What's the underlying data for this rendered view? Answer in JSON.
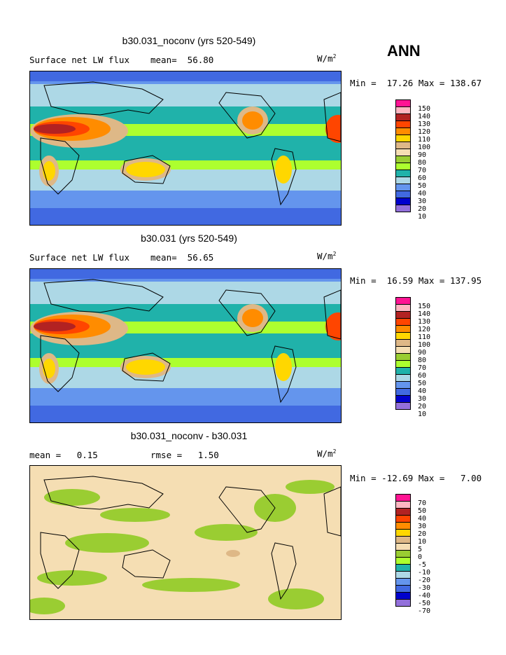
{
  "season": "ANN",
  "units_label": "W/m",
  "units_exp": "2",
  "panels": [
    {
      "title": "b30.031_noconv (yrs 520-549)",
      "left_label": "Surface net LW flux",
      "mid_label": "mean=  56.80",
      "minmax": "Min =  17.26 Max = 138.67",
      "levels": [
        "150",
        "140",
        "130",
        "120",
        "110",
        "100",
        "90",
        "80",
        "70",
        "60",
        "50",
        "40",
        "30",
        "20",
        "10"
      ]
    },
    {
      "title": "b30.031 (yrs 520-549)",
      "left_label": "Surface net LW flux",
      "mid_label": "mean=  56.65",
      "minmax": "Min =  16.59 Max = 137.95",
      "levels": [
        "150",
        "140",
        "130",
        "120",
        "110",
        "100",
        "90",
        "80",
        "70",
        "60",
        "50",
        "40",
        "30",
        "20",
        "10"
      ]
    },
    {
      "title": "b30.031_noconv - b30.031",
      "left_label": "mean =   0.15",
      "mid_label": "rmse =   1.50",
      "minmax": "Min = -12.69 Max =   7.00",
      "levels": [
        "70",
        "50",
        "40",
        "30",
        "20",
        "10",
        "5",
        "0",
        "-5",
        "-10",
        "-20",
        "-30",
        "-40",
        "-50",
        "-70"
      ]
    }
  ],
  "colors": [
    "#ff1493",
    "#ffb6c1",
    "#b22222",
    "#ff4500",
    "#ff8c00",
    "#ffd700",
    "#deb887",
    "#f5deb3",
    "#9acd32",
    "#adff2f",
    "#20b2aa",
    "#add8e6",
    "#6495ed",
    "#4169e1",
    "#0000cd",
    "#9370db"
  ]
}
